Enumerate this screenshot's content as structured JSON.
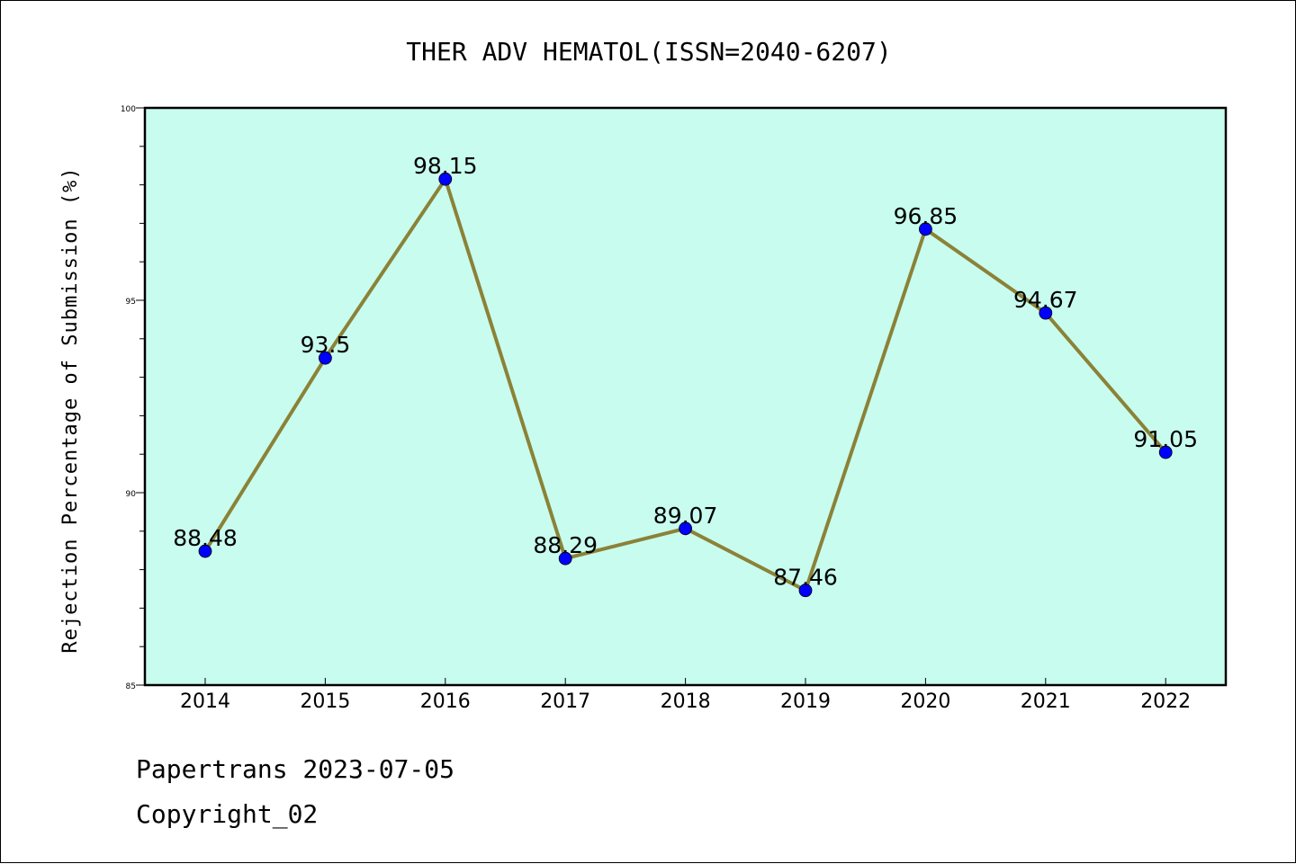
{
  "chart_data": {
    "type": "line",
    "title": "THER ADV HEMATOL(ISSN=2040-6207)",
    "xlabel": "",
    "ylabel": "Rejection Percentage of Submission (%)",
    "categories": [
      "2014",
      "2015",
      "2016",
      "2017",
      "2018",
      "2019",
      "2020",
      "2021",
      "2022"
    ],
    "series": [
      {
        "values": [
          88.48,
          93.5,
          98.15,
          88.29,
          89.07,
          87.46,
          96.85,
          94.67,
          91.05
        ],
        "labels": [
          "88.48",
          "93.5",
          "98.15",
          "88.29",
          "89.07",
          "87.46",
          "96.85",
          "94.67",
          "91.05"
        ]
      }
    ],
    "ylim": [
      85,
      100
    ],
    "yticks": [
      "85",
      "90",
      "95",
      "100"
    ],
    "grid": false,
    "colors": {
      "plot_background": "#c8fcef",
      "line": "#8b8237",
      "marker": "#0000ff"
    }
  },
  "footer": {
    "line1": "Papertrans 2023-07-05",
    "line2": "Copyright_02"
  }
}
